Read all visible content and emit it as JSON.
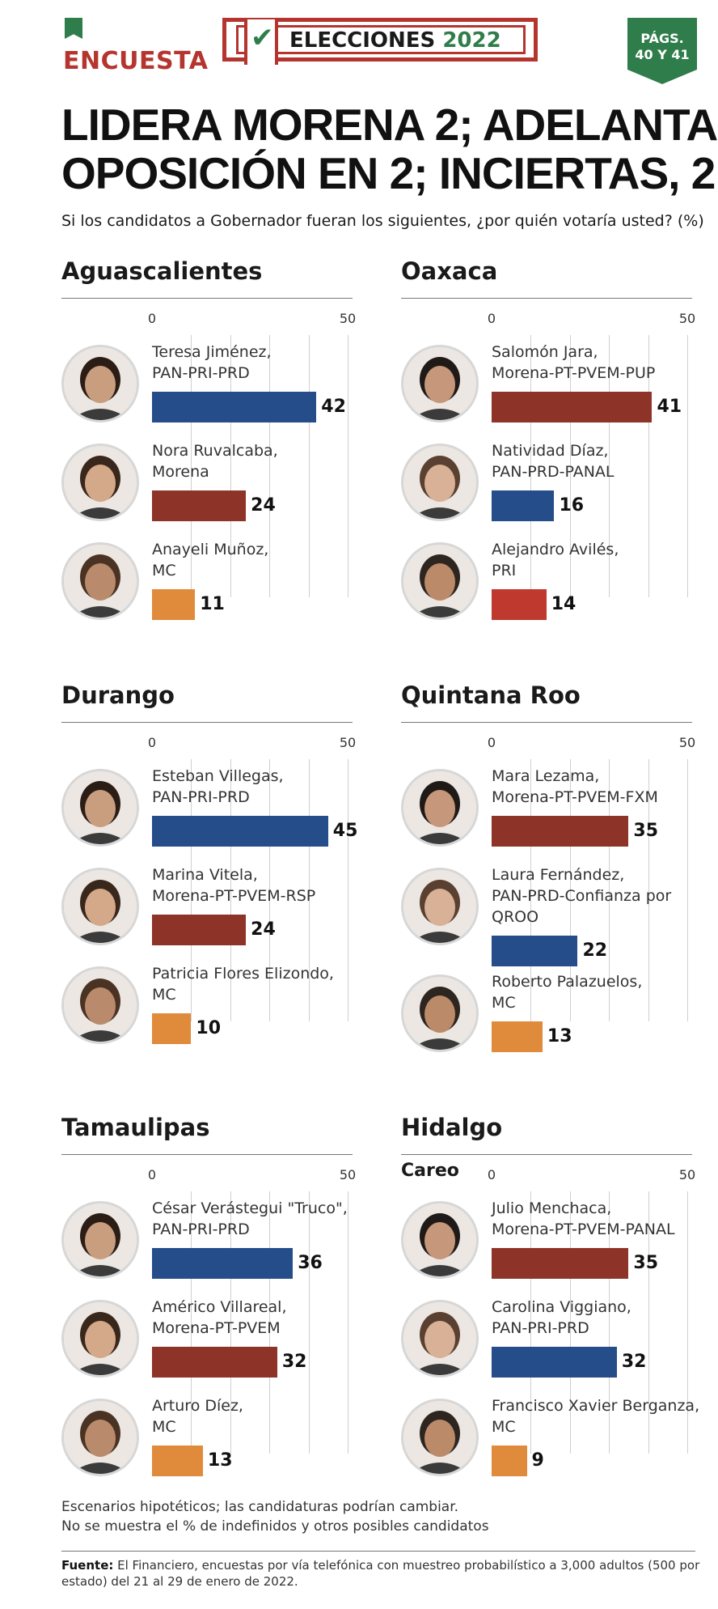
{
  "header": {
    "kicker": "ENCUESTA",
    "elections_label": "ELECCIONES",
    "elections_year": "2022",
    "pages_line1": "PÁGS.",
    "pages_line2": "40 Y 41",
    "check_icon": "check-icon"
  },
  "headline": {
    "line1": "LIDERA MORENA 2; ADELANTA",
    "line2": "OPOSICIÓN EN 2; INCIERTAS, 2"
  },
  "subtitle": "Si los candidatos a Gobernador fueran los siguientes, ¿por quién votaría usted? (%)",
  "colors": {
    "morena": "#8e3328",
    "pan_alliance": "#254d8a",
    "mc": "#e08a3c",
    "pri": "#c0392f",
    "accent_red": "#b5352e",
    "accent_green": "#2f7d4a"
  },
  "chart_data": [
    {
      "type": "bar",
      "title": "Aguascalientes",
      "xlim": [
        0,
        50
      ],
      "ticks": [
        "0",
        "50"
      ],
      "categories": [
        "Teresa Jiménez, PAN-PRI-PRD",
        "Nora Ruvalcaba, Morena",
        "Anayeli Muñoz, MC"
      ],
      "values": [
        42,
        24,
        11
      ],
      "candidates": [
        {
          "name": "Teresa Jiménez,",
          "party": "PAN-PRI-PRD",
          "value": 42,
          "value_label": "42",
          "color": "#254d8a"
        },
        {
          "name": "Nora Ruvalcaba,",
          "party": "Morena",
          "value": 24,
          "value_label": "24",
          "color": "#8e3328"
        },
        {
          "name": "Anayeli Muñoz,",
          "party": "MC",
          "value": 11,
          "value_label": "11",
          "color": "#e08a3c"
        }
      ]
    },
    {
      "type": "bar",
      "title": "Oaxaca",
      "xlim": [
        0,
        50
      ],
      "ticks": [
        "0",
        "50"
      ],
      "categories": [
        "Salomón Jara, Morena-PT-PVEM-PUP",
        "Natividad Díaz, PAN-PRD-PANAL",
        "Alejandro Avilés, PRI"
      ],
      "values": [
        41,
        16,
        14
      ],
      "candidates": [
        {
          "name": "Salomón Jara,",
          "party": "Morena-PT-PVEM-PUP",
          "value": 41,
          "value_label": "41",
          "color": "#8e3328"
        },
        {
          "name": "Natividad Díaz,",
          "party": "PAN-PRD-PANAL",
          "value": 16,
          "value_label": "16",
          "color": "#254d8a"
        },
        {
          "name": "Alejandro Avilés,",
          "party": "PRI",
          "value": 14,
          "value_label": "14",
          "color": "#c0392f"
        }
      ]
    },
    {
      "type": "bar",
      "title": "Durango",
      "xlim": [
        0,
        50
      ],
      "ticks": [
        "0",
        "50"
      ],
      "categories": [
        "Esteban Villegas, PAN-PRI-PRD",
        "Marina Vitela, Morena-PT-PVEM-RSP",
        "Patricia Flores Elizondo, MC"
      ],
      "values": [
        45,
        24,
        10
      ],
      "candidates": [
        {
          "name": "Esteban Villegas,",
          "party": "PAN-PRI-PRD",
          "value": 45,
          "value_label": "45",
          "color": "#254d8a"
        },
        {
          "name": "Marina Vitela,",
          "party": "Morena-PT-PVEM-RSP",
          "value": 24,
          "value_label": "24",
          "color": "#8e3328"
        },
        {
          "name": "Patricia Flores Elizondo,",
          "party": "MC",
          "value": 10,
          "value_label": "10",
          "color": "#e08a3c"
        }
      ]
    },
    {
      "type": "bar",
      "title": "Quintana Roo",
      "xlim": [
        0,
        50
      ],
      "ticks": [
        "0",
        "50"
      ],
      "categories": [
        "Mara Lezama, Morena-PT-PVEM-FXM",
        "Laura Fernández, PAN-PRD-Confianza por QROO",
        "Roberto Palazuelos, MC"
      ],
      "values": [
        35,
        22,
        13
      ],
      "candidates": [
        {
          "name": "Mara Lezama,",
          "party": "Morena-PT-PVEM-FXM",
          "value": 35,
          "value_label": "35",
          "color": "#8e3328"
        },
        {
          "name": "Laura Fernández,",
          "party": "PAN-PRD-Confianza por",
          "party2": "QROO",
          "value": 22,
          "value_label": "22",
          "color": "#254d8a"
        },
        {
          "name": "Roberto Palazuelos,",
          "party": "MC",
          "value": 13,
          "value_label": "13",
          "color": "#e08a3c"
        }
      ]
    },
    {
      "type": "bar",
      "title": "Tamaulipas",
      "xlim": [
        0,
        50
      ],
      "ticks": [
        "0",
        "50"
      ],
      "categories": [
        "César Verástegui \"Truco\", PAN-PRI-PRD",
        "Américo Villareal, Morena-PT-PVEM",
        "Arturo Díez, MC"
      ],
      "values": [
        36,
        32,
        13
      ],
      "candidates": [
        {
          "name": "César Verástegui \"Truco\",",
          "party": "PAN-PRI-PRD",
          "value": 36,
          "value_label": "36",
          "color": "#254d8a"
        },
        {
          "name": "Américo Villareal,",
          "party": "Morena-PT-PVEM",
          "value": 32,
          "value_label": "32",
          "color": "#8e3328"
        },
        {
          "name": "Arturo Díez,",
          "party": "MC",
          "value": 13,
          "value_label": "13",
          "color": "#e08a3c"
        }
      ]
    },
    {
      "type": "bar",
      "title": "Hidalgo",
      "subtitle": "Careo",
      "xlim": [
        0,
        50
      ],
      "ticks": [
        "0",
        "50"
      ],
      "categories": [
        "Julio Menchaca, Morena-PT-PVEM-PANAL",
        "Carolina Viggiano, PAN-PRI-PRD",
        "Francisco Xavier Berganza, MC"
      ],
      "values": [
        35,
        32,
        9
      ],
      "candidates": [
        {
          "name": "Julio Menchaca,",
          "party": "Morena-PT-PVEM-PANAL",
          "value": 35,
          "value_label": "35",
          "color": "#8e3328"
        },
        {
          "name": "Carolina Viggiano,",
          "party": "PAN-PRI-PRD",
          "value": 32,
          "value_label": "32",
          "color": "#254d8a"
        },
        {
          "name": "Francisco Xavier Berganza,",
          "party": "MC",
          "value": 9,
          "value_label": "9",
          "color": "#e08a3c"
        }
      ]
    }
  ],
  "footer": {
    "note_line1": "Escenarios hipotéticos; las candidaturas podrían cambiar.",
    "note_line2": "No se muestra el % de indefinidos y otros posibles candidatos",
    "source_label": "Fuente:",
    "source_text": " El Financiero, encuestas por vía telefónica con muestreo probabilístico a 3,000 adultos (500 por estado) del 21 al 29 de enero de 2022."
  }
}
